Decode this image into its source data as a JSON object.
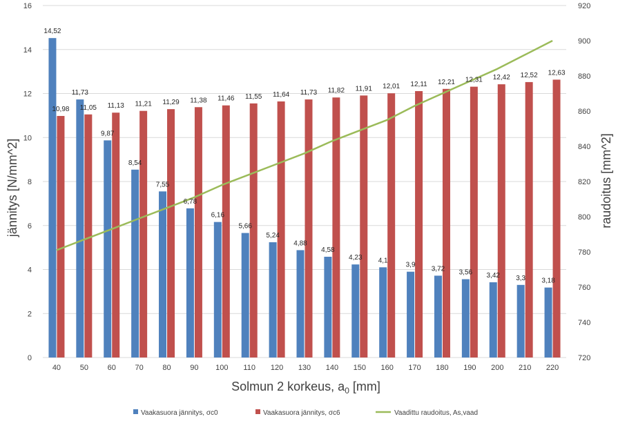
{
  "chart_data": {
    "type": "bar",
    "title": "",
    "xlabel": "Solmun 2 korkeus, a",
    "xlabel_sub": "0",
    "xlabel_unit": " [mm]",
    "ylabel": "jännitys [N/mm^2]",
    "y2label": "raudoitus [mm^2]",
    "ylim": [
      0,
      16
    ],
    "y_ticks": [
      0,
      2,
      4,
      6,
      8,
      10,
      12,
      14,
      16
    ],
    "y2lim": [
      720,
      920
    ],
    "y2_ticks": [
      720,
      740,
      760,
      780,
      800,
      820,
      840,
      860,
      880,
      900,
      920
    ],
    "grid": true,
    "legend_position": "bottom",
    "categories": [
      "40",
      "50",
      "60",
      "70",
      "80",
      "90",
      "100",
      "110",
      "120",
      "130",
      "140",
      "150",
      "160",
      "170",
      "180",
      "190",
      "200",
      "210",
      "220"
    ],
    "series": [
      {
        "name": "Vaakasuora jännitys, σc0",
        "type": "bar",
        "axis": "left",
        "color": "#4f81bd",
        "values": [
          14.52,
          11.73,
          9.87,
          8.54,
          7.55,
          6.78,
          6.16,
          5.66,
          5.24,
          4.88,
          4.58,
          4.23,
          4.1,
          3.9,
          3.72,
          3.56,
          3.42,
          3.3,
          3.18
        ],
        "labels": [
          "14,52",
          "11,73",
          "9,87",
          "8,54",
          "7,55",
          "6,78",
          "6,16",
          "5,66",
          "5,24",
          "4,88",
          "4,58",
          "4,23",
          "4,1",
          "3,9",
          "3,72",
          "3,56",
          "3,42",
          "3,3",
          "3,18"
        ]
      },
      {
        "name": "Vaakasuora jännitys, σc6",
        "type": "bar",
        "axis": "left",
        "color": "#c0504d",
        "values": [
          10.98,
          11.05,
          11.13,
          11.21,
          11.29,
          11.38,
          11.46,
          11.55,
          11.64,
          11.73,
          11.82,
          11.91,
          12.01,
          12.11,
          12.21,
          12.31,
          12.42,
          12.52,
          12.63
        ],
        "labels": [
          "10,98",
          "11,05",
          "11,13",
          "11,21",
          "11,29",
          "11,38",
          "11,46",
          "11,55",
          "11,64",
          "11,73",
          "11,82",
          "11,91",
          "12,01",
          "12,11",
          "12,21",
          "12,31",
          "12,42",
          "12,52",
          "12,63"
        ]
      },
      {
        "name": "Vaadittu raudoitus, As,vaad",
        "type": "line",
        "axis": "right",
        "color": "#9bbb59",
        "values": [
          781,
          787,
          793,
          799,
          805,
          811,
          818,
          824,
          830,
          836,
          843,
          849,
          855,
          863,
          870,
          877,
          884,
          892,
          900
        ]
      }
    ]
  }
}
